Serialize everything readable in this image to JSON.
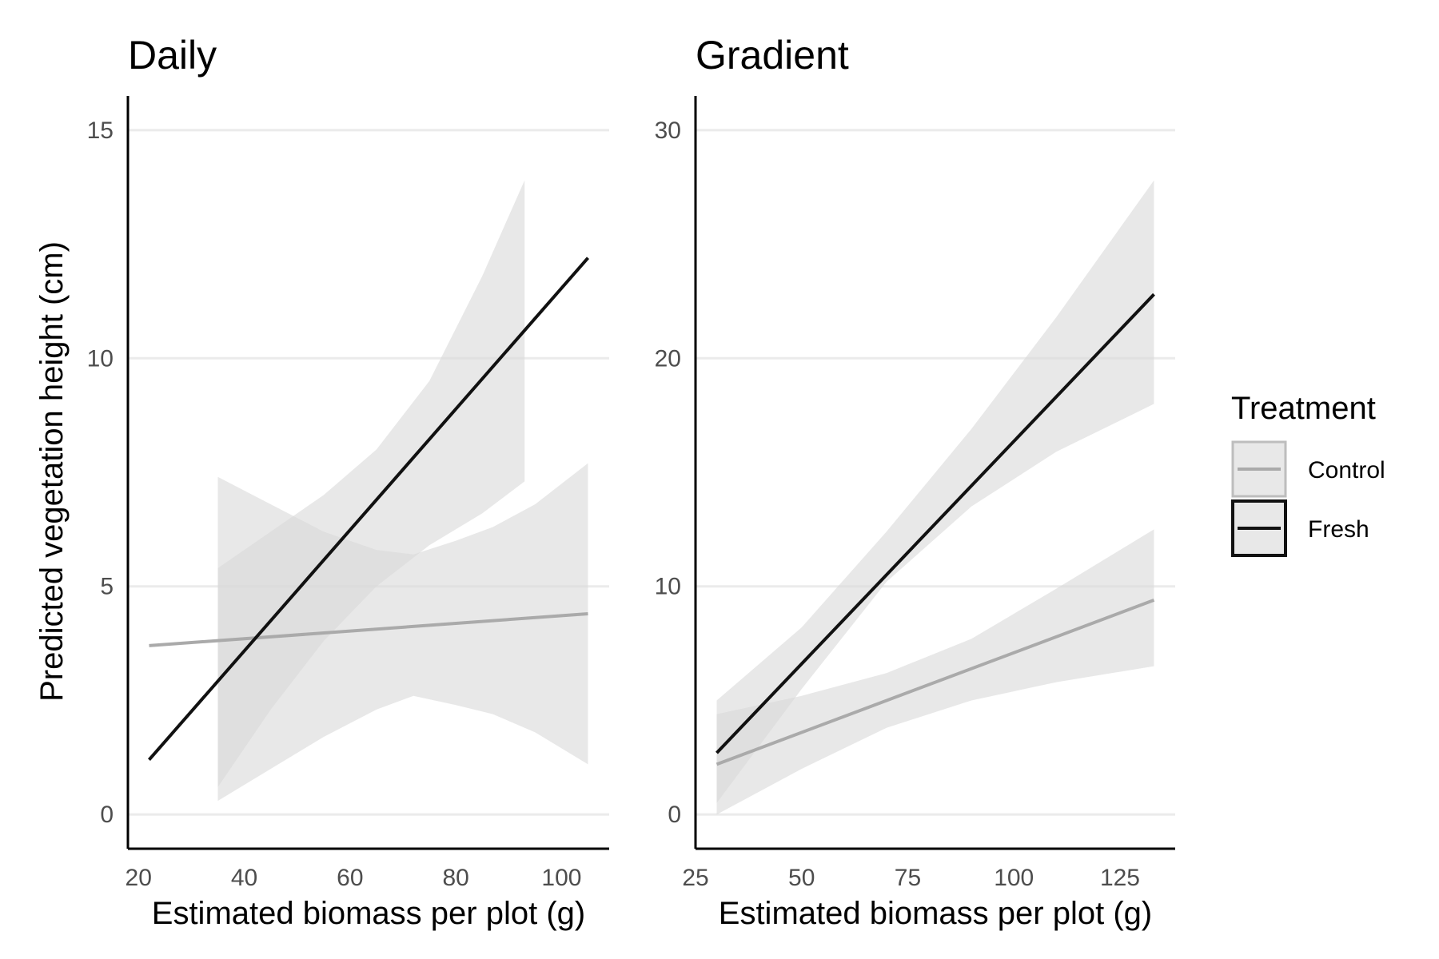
{
  "y_axis_label": "Predicted vegetation height (cm)",
  "legend": {
    "title": "Treatment",
    "items": [
      {
        "label": "Control",
        "color": "#aaaaaa"
      },
      {
        "label": "Fresh",
        "color": "#111111"
      }
    ]
  },
  "colors": {
    "control_line": "#aaaaaa",
    "fresh_line": "#111111",
    "ribbon": "#d9d9d9",
    "gridline": "#ebebeb",
    "axis": "#000000"
  },
  "chart_data": [
    {
      "type": "line",
      "title": "Daily",
      "xlabel": "Estimated biomass per plot (g)",
      "ylabel": "Predicted vegetation height (cm)",
      "xlim": [
        18,
        109
      ],
      "ylim": [
        -0.75,
        15.75
      ],
      "xticks": [
        20,
        40,
        60,
        80,
        100
      ],
      "yticks": [
        0,
        5,
        10,
        15
      ],
      "grid": "horizontal major",
      "series": [
        {
          "name": "Control",
          "x": [
            22,
            105
          ],
          "y": [
            3.7,
            4.4
          ],
          "ribbon": {
            "x": [
              35,
              45,
              55,
              65,
              72,
              80,
              87,
              95,
              105
            ],
            "lower": [
              0.3,
              1.0,
              1.7,
              2.3,
              2.6,
              2.4,
              2.2,
              1.8,
              1.1
            ],
            "upper": [
              7.4,
              6.8,
              6.2,
              5.8,
              5.7,
              6.0,
              6.3,
              6.8,
              7.7
            ]
          }
        },
        {
          "name": "Fresh",
          "x": [
            22,
            105
          ],
          "y": [
            1.2,
            12.2
          ],
          "ribbon": {
            "x": [
              35,
              45,
              55,
              65,
              75,
              85,
              93
            ],
            "lower": [
              0.6,
              2.3,
              3.8,
              5.0,
              5.9,
              6.6,
              7.3
            ],
            "upper": [
              5.4,
              6.2,
              7.0,
              8.0,
              9.5,
              11.8,
              13.9
            ]
          }
        }
      ]
    },
    {
      "type": "line",
      "title": "Gradient",
      "xlabel": "Estimated biomass per plot (g)",
      "ylabel": "",
      "xlim": [
        25,
        138
      ],
      "ylim": [
        -1.5,
        31.5
      ],
      "xticks": [
        25,
        50,
        75,
        100,
        125
      ],
      "yticks": [
        0,
        10,
        20,
        30
      ],
      "grid": "horizontal major",
      "series": [
        {
          "name": "Control",
          "x": [
            30,
            133
          ],
          "y": [
            2.2,
            9.4
          ],
          "ribbon": {
            "x": [
              30,
              50,
              70,
              90,
              110,
              133
            ],
            "lower": [
              0.0,
              2.0,
              3.8,
              5.0,
              5.8,
              6.5
            ],
            "upper": [
              4.4,
              5.2,
              6.2,
              7.7,
              9.9,
              12.5
            ]
          }
        },
        {
          "name": "Fresh",
          "x": [
            30,
            133
          ],
          "y": [
            2.7,
            22.8
          ],
          "ribbon": {
            "x": [
              30,
              50,
              70,
              90,
              110,
              133
            ],
            "lower": [
              0.5,
              5.5,
              10.2,
              13.5,
              15.9,
              18.0
            ],
            "upper": [
              5.0,
              8.2,
              12.4,
              16.9,
              21.8,
              27.8
            ]
          }
        }
      ]
    }
  ]
}
